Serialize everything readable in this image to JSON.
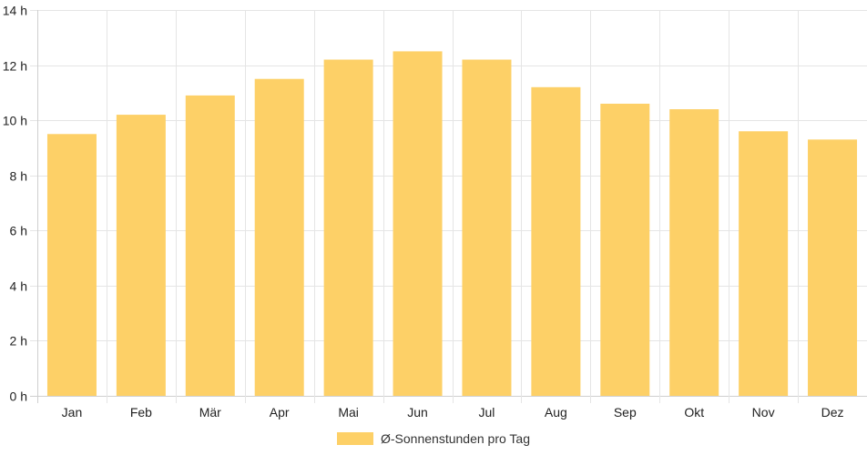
{
  "chart_data": {
    "type": "bar",
    "categories": [
      "Jan",
      "Feb",
      "Mär",
      "Apr",
      "Mai",
      "Jun",
      "Jul",
      "Aug",
      "Sep",
      "Okt",
      "Nov",
      "Dez"
    ],
    "series": [
      {
        "name": "Ø-Sonnenstunden pro Tag",
        "values": [
          9.5,
          10.2,
          10.9,
          11.5,
          12.2,
          12.5,
          12.2,
          11.2,
          10.6,
          10.4,
          9.6,
          9.3
        ],
        "color": "#fdd067"
      }
    ],
    "y_ticks": [
      0,
      2,
      4,
      6,
      8,
      10,
      12,
      14
    ],
    "y_tick_suffix": " h",
    "ylim": [
      0,
      14
    ],
    "grid": true,
    "grid_color": "#e5e5e5",
    "legend_position": "bottom-center",
    "title": "",
    "xlabel": "",
    "ylabel": ""
  }
}
